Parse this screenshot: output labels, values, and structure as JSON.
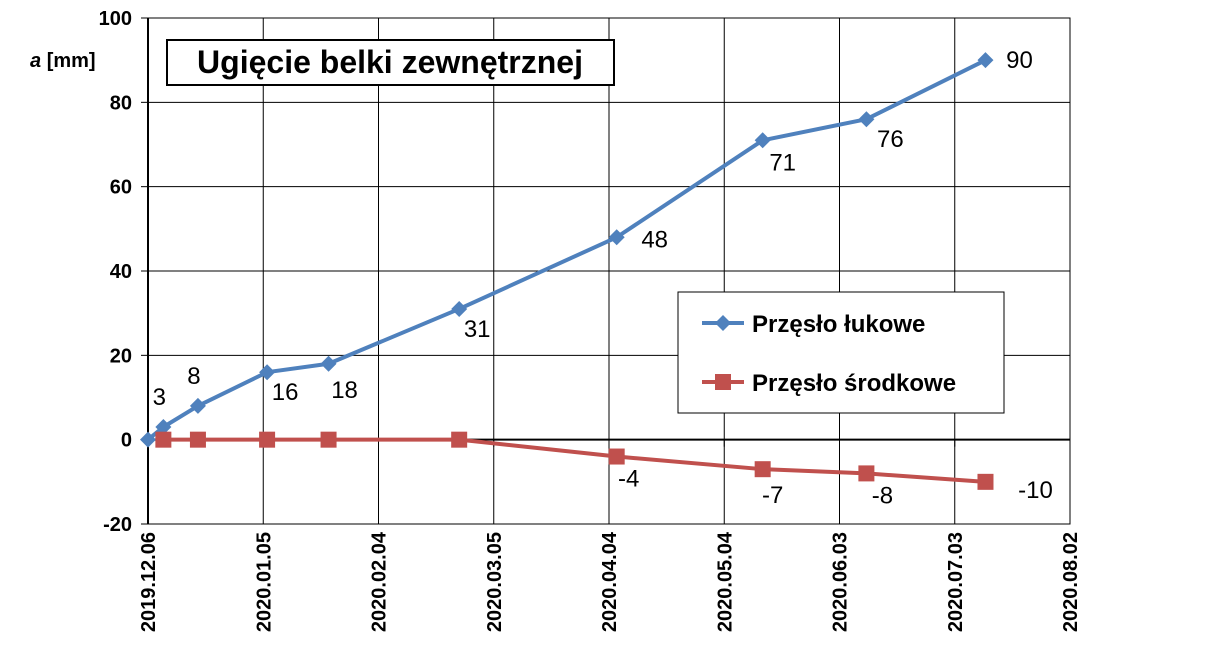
{
  "chart_data": {
    "type": "line",
    "title": "Ugięcie belki zewnętrznej",
    "ylabel_symbol": "a",
    "ylabel_unit": "[mm]",
    "ylim": [
      -20,
      100
    ],
    "yticks": [
      -20,
      0,
      20,
      40,
      60,
      80,
      100
    ],
    "xlim": [
      "2019-12-06",
      "2020-08-02"
    ],
    "xticks": [
      {
        "date": "2019-12-06",
        "label": "2019.12.06"
      },
      {
        "date": "2020-01-05",
        "label": "2020.01.05"
      },
      {
        "date": "2020-02-04",
        "label": "2020.02.04"
      },
      {
        "date": "2020-03-05",
        "label": "2020.03.05"
      },
      {
        "date": "2020-04-04",
        "label": "2020.04.04"
      },
      {
        "date": "2020-05-04",
        "label": "2020.05.04"
      },
      {
        "date": "2020-06-03",
        "label": "2020.06.03"
      },
      {
        "date": "2020-07-03",
        "label": "2020.07.03"
      },
      {
        "date": "2020-08-02",
        "label": "2020.08.02"
      }
    ],
    "grid": true,
    "legend_position": "middle-right",
    "series": [
      {
        "name": "Przęsło łukowe",
        "color": "#4f81bd",
        "marker": "diamond",
        "points": [
          {
            "x": "2019-12-06",
            "y": 0,
            "label": ""
          },
          {
            "x": "2019-12-10",
            "y": 3,
            "label": "3"
          },
          {
            "x": "2019-12-19",
            "y": 8,
            "label": "8"
          },
          {
            "x": "2020-01-06",
            "y": 16,
            "label": "16"
          },
          {
            "x": "2020-01-22",
            "y": 18,
            "label": "18"
          },
          {
            "x": "2020-02-25",
            "y": 31,
            "label": "31"
          },
          {
            "x": "2020-04-06",
            "y": 48,
            "label": "48"
          },
          {
            "x": "2020-05-14",
            "y": 71,
            "label": "71"
          },
          {
            "x": "2020-06-10",
            "y": 76,
            "label": "76"
          },
          {
            "x": "2020-07-11",
            "y": 90,
            "label": "90"
          }
        ]
      },
      {
        "name": "Przęsło środkowe",
        "color": "#c0504d",
        "marker": "square",
        "points": [
          {
            "x": "2019-12-10",
            "y": 0,
            "label": ""
          },
          {
            "x": "2019-12-19",
            "y": 0,
            "label": ""
          },
          {
            "x": "2020-01-06",
            "y": 0,
            "label": ""
          },
          {
            "x": "2020-01-22",
            "y": 0,
            "label": ""
          },
          {
            "x": "2020-02-25",
            "y": 0,
            "label": ""
          },
          {
            "x": "2020-04-06",
            "y": -4,
            "label": "-4"
          },
          {
            "x": "2020-05-14",
            "y": -7,
            "label": "-7"
          },
          {
            "x": "2020-06-10",
            "y": -8,
            "label": "-8"
          },
          {
            "x": "2020-07-11",
            "y": -10,
            "label": "-10"
          }
        ]
      }
    ]
  }
}
